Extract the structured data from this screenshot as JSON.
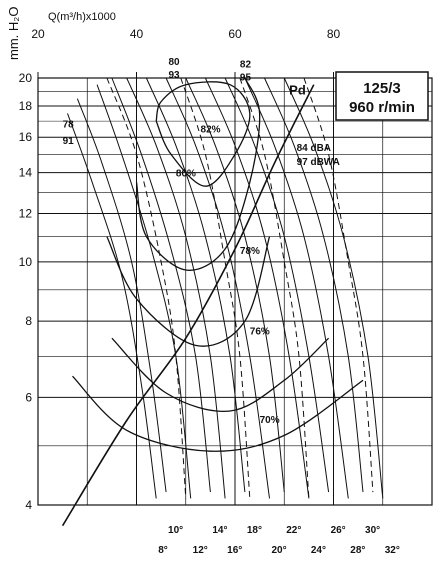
{
  "chart_data": {
    "type": "line",
    "xlabel": "Q(m³/h)x1000",
    "ylabel": "mm. H₂O",
    "x_ticks": [
      "20",
      "40",
      "60",
      "80"
    ],
    "y_ticks": [
      "4",
      "6",
      "8",
      "10",
      "12",
      "14",
      "16",
      "18",
      "20"
    ],
    "xlim": [
      20,
      100
    ],
    "ylim": [
      4,
      20
    ],
    "y_scale": "log",
    "grid": true,
    "title_box": {
      "line1": "125/3",
      "line2": "960 r/min"
    },
    "blade_angle_curves": [
      {
        "label": "8°",
        "points": [
          [
            26,
            17.5
          ],
          [
            31,
            13.5
          ],
          [
            37,
            9.5
          ],
          [
            41,
            6.3
          ],
          [
            44,
            4.1
          ]
        ]
      },
      {
        "label": "10°",
        "points": [
          [
            28,
            18.5
          ],
          [
            33,
            14.5
          ],
          [
            39,
            10
          ],
          [
            43,
            6.5
          ],
          [
            46,
            4.2
          ]
        ]
      },
      {
        "label": "12°",
        "points": [
          [
            32,
            19.5
          ],
          [
            37,
            15
          ],
          [
            43,
            10.5
          ],
          [
            48,
            7
          ],
          [
            51,
            4.1
          ]
        ]
      },
      {
        "label": "14°",
        "points": [
          [
            35,
            20
          ],
          [
            41,
            15
          ],
          [
            47,
            10.5
          ],
          [
            52,
            7
          ],
          [
            55,
            4.2
          ]
        ]
      },
      {
        "label": "16°",
        "points": [
          [
            38,
            20
          ],
          [
            44,
            15.5
          ],
          [
            50,
            11
          ],
          [
            55,
            7
          ],
          [
            58,
            4.1
          ]
        ]
      },
      {
        "label": "18°",
        "points": [
          [
            42,
            20
          ],
          [
            48,
            15.5
          ],
          [
            54,
            11
          ],
          [
            59,
            7
          ],
          [
            62,
            4.2
          ]
        ]
      },
      {
        "label": "20°",
        "points": [
          [
            46,
            20
          ],
          [
            52,
            15.5
          ],
          [
            58,
            11
          ],
          [
            63,
            7
          ],
          [
            67,
            4.1
          ]
        ]
      },
      {
        "label": "22°",
        "points": [
          [
            50,
            20
          ],
          [
            56,
            15.5
          ],
          [
            62,
            11
          ],
          [
            67,
            7
          ],
          [
            70,
            4.2
          ]
        ]
      },
      {
        "label": "24°",
        "points": [
          [
            54,
            20
          ],
          [
            60,
            15.5
          ],
          [
            66,
            11
          ],
          [
            71,
            7
          ],
          [
            75,
            4.1
          ]
        ]
      },
      {
        "label": "26°",
        "points": [
          [
            58,
            20
          ],
          [
            64,
            15.5
          ],
          [
            70,
            11
          ],
          [
            75,
            7
          ],
          [
            79,
            4.2
          ]
        ]
      },
      {
        "label": "28°",
        "points": [
          [
            62,
            20
          ],
          [
            68,
            15.5
          ],
          [
            74,
            11
          ],
          [
            79,
            7
          ],
          [
            83,
            4.1
          ]
        ]
      },
      {
        "label": "30°",
        "points": [
          [
            66,
            20
          ],
          [
            72,
            15.5
          ],
          [
            78,
            11
          ],
          [
            83,
            7
          ],
          [
            86,
            4.2
          ]
        ]
      },
      {
        "label": "32°",
        "points": [
          [
            70,
            20
          ],
          [
            76,
            15.5
          ],
          [
            82,
            11
          ],
          [
            87,
            7
          ],
          [
            90,
            4.1
          ]
        ]
      }
    ],
    "efficiency_curves": [
      {
        "label": "82%",
        "points": [
          [
            44,
            17
          ],
          [
            47,
            15
          ],
          [
            54,
            13.3
          ],
          [
            60,
            15
          ],
          [
            63,
            17.5
          ],
          [
            59,
            19.5
          ],
          [
            50,
            19.5
          ],
          [
            45,
            18.3
          ],
          [
            44,
            17
          ]
        ]
      },
      {
        "label": "80%",
        "points": [
          [
            40,
            13.5
          ],
          [
            42,
            11
          ],
          [
            50,
            9.7
          ],
          [
            58,
            10.5
          ],
          [
            63,
            13.5
          ],
          [
            65,
            17.5
          ],
          [
            62,
            20
          ]
        ]
      },
      {
        "label": "78%",
        "points": [
          [
            34,
            11
          ],
          [
            40,
            8.7
          ],
          [
            52,
            7.3
          ],
          [
            62,
            8
          ],
          [
            67,
            11
          ]
        ]
      },
      {
        "label": "76%",
        "points": [
          [
            35,
            7.5
          ],
          [
            46,
            6.1
          ],
          [
            59,
            5.7
          ],
          [
            70,
            6.4
          ],
          [
            79,
            7.5
          ]
        ]
      },
      {
        "label": "70%",
        "points": [
          [
            27,
            6.5
          ],
          [
            38,
            5.3
          ],
          [
            55,
            4.9
          ],
          [
            70,
            5.2
          ],
          [
            86,
            6.4
          ]
        ]
      }
    ],
    "noise_lines": [
      {
        "label": "78 / 91",
        "points": [
          [
            34,
            20
          ],
          [
            40,
            15
          ],
          [
            45,
            10
          ],
          [
            48,
            7
          ],
          [
            50,
            4.1
          ]
        ]
      },
      {
        "label": "80 / 93",
        "points": [
          [
            49,
            20
          ],
          [
            54,
            15
          ],
          [
            58,
            10
          ],
          [
            61,
            7
          ],
          [
            63,
            4.1
          ]
        ]
      },
      {
        "label": "82 / 95",
        "points": [
          [
            61,
            20
          ],
          [
            66,
            15
          ],
          [
            70,
            10
          ],
          [
            73,
            7
          ],
          [
            75,
            4.1
          ]
        ]
      },
      {
        "label": "84 dBA / 97 dBWA",
        "points": [
          [
            74,
            20
          ],
          [
            79,
            15
          ],
          [
            83,
            10
          ],
          [
            86,
            7
          ],
          [
            88,
            4.2
          ]
        ]
      }
    ],
    "pd_curve": {
      "label": "Pd",
      "points": [
        [
          25,
          3.7
        ],
        [
          38,
          5.5
        ],
        [
          50,
          7.5
        ],
        [
          60,
          10.5
        ],
        [
          68,
          14.5
        ],
        [
          76,
          19.5
        ]
      ]
    },
    "annotations": {
      "eff_labels": [
        "82%",
        "80%",
        "78%",
        "76%",
        "70%"
      ],
      "noise_labels": [
        "78",
        "91",
        "80",
        "93",
        "82",
        "95",
        "84 dBA",
        "97 dBWA"
      ],
      "pd": "Pd"
    }
  }
}
